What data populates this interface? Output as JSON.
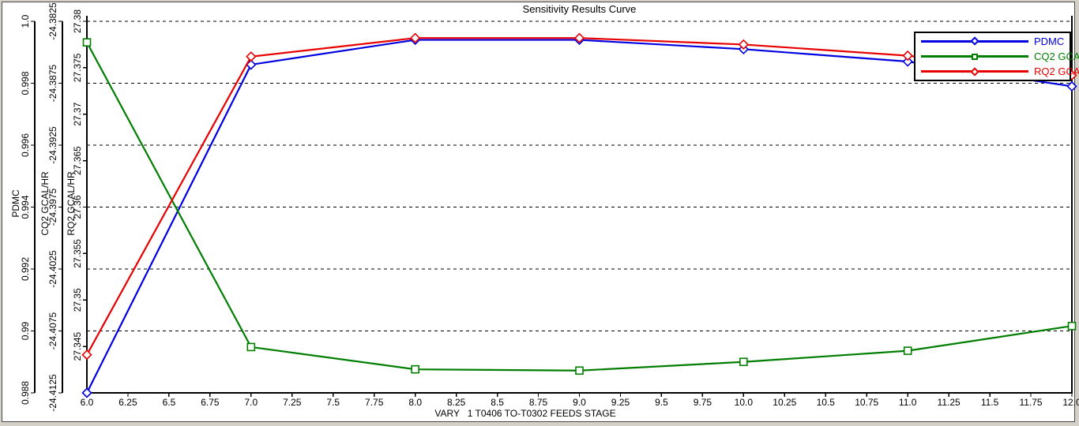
{
  "chart_data": {
    "type": "line",
    "title": "Sensitivity Results Curve",
    "xlabel": "VARY   1 T0406 TO-T0302 FEEDS STAGE",
    "x": [
      6.0,
      7.0,
      8.0,
      9.0,
      10.0,
      11.0,
      12.0
    ],
    "x_axis": {
      "min": 6.0,
      "max": 12.0,
      "tick_step": 0.25,
      "tick_labels": [
        "6.0",
        "6.25",
        "6.5",
        "6.75",
        "7.0",
        "7.25",
        "7.5",
        "7.75",
        "8.0",
        "8.25",
        "8.5",
        "8.75",
        "9.0",
        "9.25",
        "9.5",
        "9.75",
        "10.0",
        "10.25",
        "10.5",
        "10.75",
        "11.0",
        "11.25",
        "11.5",
        "11.75",
        "12.0"
      ]
    },
    "y_axes": [
      {
        "title": "PDMC",
        "min": 0.988,
        "max": 1.0,
        "ticks": [
          {
            "v": 1.0,
            "label": "1.0"
          },
          {
            "v": 0.998,
            "label": "0.998"
          },
          {
            "v": 0.996,
            "label": "0.996"
          },
          {
            "v": 0.994,
            "label": "0.994"
          },
          {
            "v": 0.992,
            "label": "0.992"
          },
          {
            "v": 0.99,
            "label": "0.99"
          },
          {
            "v": 0.988,
            "label": "0.988"
          }
        ]
      },
      {
        "title": "CQ2 GCAL/HR",
        "min": -24.4125,
        "max": -24.3825,
        "ticks": [
          {
            "v": -24.3825,
            "label": "-24.3825"
          },
          {
            "v": -24.3875,
            "label": "-24.3875"
          },
          {
            "v": -24.3925,
            "label": "-24.3925"
          },
          {
            "v": -24.3975,
            "label": "-24.3975"
          },
          {
            "v": -24.4025,
            "label": "-24.4025"
          },
          {
            "v": -24.4075,
            "label": "-24.4075"
          },
          {
            "v": -24.4125,
            "label": "-24.4125"
          }
        ]
      },
      {
        "title": "RQ2 GCAL/HR",
        "min": 27.34,
        "max": 27.38,
        "ticks": [
          {
            "v": 27.38,
            "label": "27.38"
          },
          {
            "v": 27.375,
            "label": "27.375"
          },
          {
            "v": 27.37,
            "label": "27.37"
          },
          {
            "v": 27.365,
            "label": "27.365"
          },
          {
            "v": 27.36,
            "label": "27.36"
          },
          {
            "v": 27.355,
            "label": "27.355"
          },
          {
            "v": 27.35,
            "label": "27.35"
          },
          {
            "v": 27.345,
            "label": "27.345"
          },
          {
            "v": 27.34,
            "label": ""
          }
        ]
      }
    ],
    "series": [
      {
        "name": "PDMC",
        "axis": 0,
        "color": "#0000E0",
        "marker": "diamond",
        "values": [
          0.988,
          0.9986,
          0.9994,
          0.9994,
          0.9991,
          0.9987,
          0.9979
        ]
      },
      {
        "name": "CQ2 GCAL/HR",
        "axis": 1,
        "color": "#007E00",
        "marker": "square",
        "values": [
          -24.3842,
          -24.4088,
          -24.4106,
          -24.4107,
          -24.41,
          -24.4091,
          -24.4071
        ]
      },
      {
        "name": "RQ2 GCAL/HR",
        "axis": 2,
        "color": "#E80000",
        "marker": "diamond",
        "values": [
          27.3441,
          27.3762,
          27.3782,
          27.3782,
          27.3775,
          27.3763,
          27.3742
        ]
      }
    ],
    "grid": {
      "horizontal": "dashed",
      "vertical": "none"
    },
    "legend_position": "top-right"
  }
}
